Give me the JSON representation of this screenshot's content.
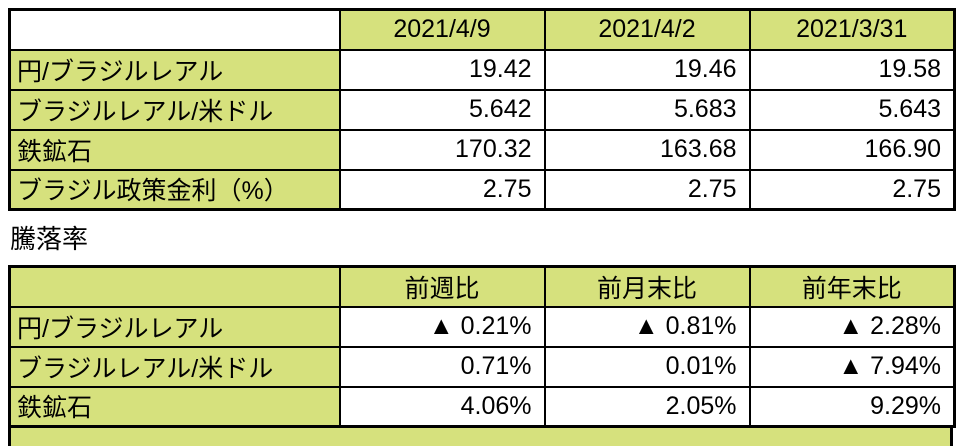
{
  "colors": {
    "header_fill": "#d6e17d",
    "border": "#000000",
    "background": "#ffffff"
  },
  "section_label": "騰落率",
  "rates_table": {
    "columns": [
      "2021/4/9",
      "2021/4/2",
      "2021/3/31"
    ],
    "rows": [
      {
        "label": "円/ブラジルレアル",
        "values": [
          "19.42",
          "19.46",
          "19.58"
        ]
      },
      {
        "label": "ブラジルレアル/米ドル",
        "values": [
          "5.642",
          "5.683",
          "5.643"
        ]
      },
      {
        "label": "鉄鉱石",
        "values": [
          "170.32",
          "163.68",
          "166.90"
        ]
      },
      {
        "label": "ブラジル政策金利（%）",
        "values": [
          "2.75",
          "2.75",
          "2.75"
        ]
      }
    ]
  },
  "change_table": {
    "columns": [
      "前週比",
      "前月末比",
      "前年末比"
    ],
    "rows": [
      {
        "label": "円/ブラジルレアル",
        "values": [
          "▲ 0.21%",
          "▲ 0.81%",
          "▲ 2.28%"
        ]
      },
      {
        "label": "ブラジルレアル/米ドル",
        "values": [
          "0.71%",
          "0.01%",
          "▲ 7.94%"
        ]
      },
      {
        "label": "鉄鉱石",
        "values": [
          "4.06%",
          "2.05%",
          "9.29%"
        ]
      }
    ]
  }
}
